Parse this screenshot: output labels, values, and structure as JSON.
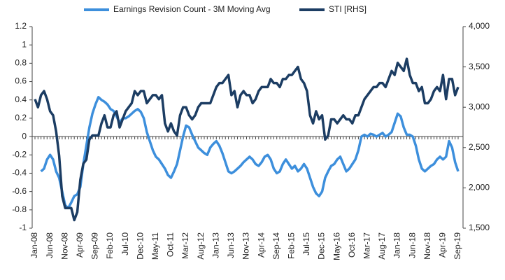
{
  "chart_data": {
    "type": "line",
    "categories": [
      "Jan-08",
      null,
      null,
      null,
      null,
      "Jun-08",
      null,
      null,
      null,
      null,
      "Nov-08",
      null,
      null,
      null,
      null,
      "Apr-09",
      null,
      null,
      null,
      null,
      "Sep-09",
      null,
      null,
      null,
      null,
      "Feb-10",
      null,
      null,
      null,
      null,
      "Jul-10",
      null,
      null,
      null,
      null,
      "Dec-10",
      null,
      null,
      null,
      null,
      "May-11",
      null,
      null,
      null,
      null,
      "Oct-11",
      null,
      null,
      null,
      null,
      "Mar-12",
      null,
      null,
      null,
      null,
      "Aug-12",
      null,
      null,
      null,
      null,
      "Jan-13",
      null,
      null,
      null,
      null,
      "Jun-13",
      null,
      null,
      null,
      null,
      "Nov-13",
      null,
      null,
      null,
      null,
      "Apr-14",
      null,
      null,
      null,
      null,
      "Sep-14",
      null,
      null,
      null,
      null,
      "Feb-15",
      null,
      null,
      null,
      null,
      "Jul-15",
      null,
      null,
      null,
      null,
      "Dec-15",
      null,
      null,
      null,
      null,
      "May-16",
      null,
      null,
      null,
      null,
      "Oct-16",
      null,
      null,
      null,
      null,
      "Mar-17",
      null,
      null,
      null,
      null,
      "Aug-17",
      null,
      null,
      null,
      null,
      "Jan-18",
      null,
      null,
      null,
      null,
      "Jun-18",
      null,
      null,
      null,
      null,
      "Nov-18",
      null,
      null,
      null,
      null,
      "Apr-19",
      null,
      null,
      null,
      null,
      "Sep-19"
    ],
    "series": [
      {
        "name": "Earnings Revision Count - 3M Moving Avg",
        "color": "#3d8fdc",
        "values": [
          null,
          null,
          -0.38,
          -0.35,
          -0.25,
          -0.2,
          -0.25,
          -0.38,
          -0.45,
          -0.6,
          -0.75,
          -0.78,
          -0.72,
          -0.65,
          -0.63,
          -0.55,
          -0.3,
          -0.1,
          0.1,
          0.25,
          0.35,
          0.43,
          0.4,
          0.38,
          0.35,
          0.3,
          0.28,
          0.22,
          0.15,
          0.2,
          0.2,
          0.22,
          0.25,
          0.28,
          0.3,
          0.27,
          0.2,
          0.05,
          -0.05,
          -0.15,
          -0.22,
          -0.25,
          -0.3,
          -0.35,
          -0.42,
          -0.45,
          -0.38,
          -0.3,
          -0.15,
          0,
          0.12,
          0.1,
          0.02,
          -0.05,
          -0.12,
          -0.15,
          -0.18,
          -0.2,
          -0.12,
          -0.08,
          -0.05,
          -0.1,
          -0.18,
          -0.28,
          -0.38,
          -0.4,
          -0.38,
          -0.35,
          -0.32,
          -0.28,
          -0.25,
          -0.22,
          -0.25,
          -0.3,
          -0.32,
          -0.28,
          -0.22,
          -0.2,
          -0.25,
          -0.35,
          -0.4,
          -0.38,
          -0.3,
          -0.25,
          -0.3,
          -0.35,
          -0.32,
          -0.38,
          -0.35,
          -0.3,
          -0.35,
          -0.45,
          -0.55,
          -0.62,
          -0.65,
          -0.6,
          -0.45,
          -0.38,
          -0.32,
          -0.3,
          -0.25,
          -0.22,
          -0.3,
          -0.38,
          -0.35,
          -0.3,
          -0.25,
          -0.15,
          0,
          0.02,
          0,
          0.03,
          0.02,
          0,
          0.02,
          0.04,
          0,
          0.02,
          0.05,
          0.15,
          0.25,
          0.22,
          0.1,
          0.02,
          0.02,
          0,
          -0.1,
          -0.25,
          -0.35,
          -0.38,
          -0.35,
          -0.32,
          -0.3,
          -0.25,
          -0.22,
          -0.25,
          -0.22,
          -0.05,
          -0.12,
          -0.28,
          -0.38
        ]
      },
      {
        "name": "STI [RHS]",
        "color": "#1c3d63",
        "axis": "y2",
        "values": [
          3100,
          3000,
          3150,
          3200,
          3100,
          2950,
          2900,
          2700,
          2400,
          1900,
          1750,
          1750,
          1750,
          1600,
          1700,
          2100,
          2300,
          2350,
          2600,
          2650,
          2650,
          2650,
          2800,
          2900,
          2750,
          2750,
          2900,
          2950,
          2750,
          2850,
          2950,
          3000,
          3050,
          3200,
          3150,
          3200,
          3200,
          3050,
          3100,
          3150,
          3150,
          3100,
          3150,
          2800,
          2700,
          2800,
          2700,
          2650,
          2900,
          3000,
          3000,
          2900,
          2850,
          2900,
          3000,
          3050,
          3050,
          3050,
          3050,
          3150,
          3250,
          3300,
          3300,
          3350,
          3400,
          3150,
          3200,
          3000,
          3150,
          3200,
          3150,
          3150,
          3050,
          3100,
          3200,
          3250,
          3250,
          3250,
          3350,
          3300,
          3300,
          3250,
          3350,
          3350,
          3400,
          3400,
          3450,
          3500,
          3350,
          3300,
          3200,
          2900,
          2800,
          2950,
          2850,
          2900,
          2600,
          2650,
          2850,
          2850,
          2800,
          2850,
          2900,
          2850,
          2850,
          2800,
          2900,
          2900,
          3000,
          3100,
          3150,
          3200,
          3250,
          3250,
          3300,
          3300,
          3250,
          3350,
          3450,
          3400,
          3550,
          3500,
          3450,
          3600,
          3400,
          3300,
          3300,
          3200,
          3250,
          3050,
          3050,
          3100,
          3200,
          3250,
          3200,
          3400,
          3100,
          3350,
          3350,
          3150,
          3250
        ]
      }
    ],
    "ylim": [
      -1,
      1.2
    ],
    "yticks": [
      1.2,
      1,
      0.8,
      0.6,
      0.4,
      0.2,
      0,
      -0.2,
      -0.4,
      -0.6,
      -0.8,
      -1
    ],
    "y2lim": [
      1500,
      4000
    ],
    "y2ticks": [
      {
        "value": 4000,
        "label": "4,000"
      },
      {
        "value": 3500,
        "label": "3,500"
      },
      {
        "value": 3000,
        "label": "3,000"
      },
      {
        "value": 2500,
        "label": "2,500"
      },
      {
        "value": 2000,
        "label": "2,000"
      },
      {
        "value": 1500,
        "label": "1,500"
      }
    ],
    "legend": "top"
  }
}
